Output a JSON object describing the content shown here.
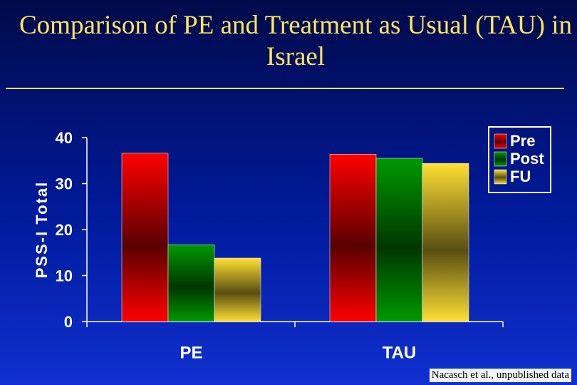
{
  "chart_data": {
    "type": "bar",
    "title": "Comparison of PE and Treatment as Usual (TAU) in Israel",
    "y_label": "PSS-I Total",
    "categories": [
      "PE",
      "TAU"
    ],
    "series": [
      {
        "name": "Pre",
        "color": "#ff0000",
        "values": [
          36.6,
          36.4
        ]
      },
      {
        "name": "Post",
        "color": "#009900",
        "values": [
          16.7,
          35.5
        ]
      },
      {
        "name": "FU",
        "color": "#ffe033",
        "values": [
          13.8,
          34.4
        ]
      }
    ],
    "ylim": [
      0,
      40
    ],
    "yticks": [
      0,
      10,
      20,
      30,
      40
    ],
    "legend": "top-right",
    "annotation": "Nacasch et al., unpublished data"
  }
}
